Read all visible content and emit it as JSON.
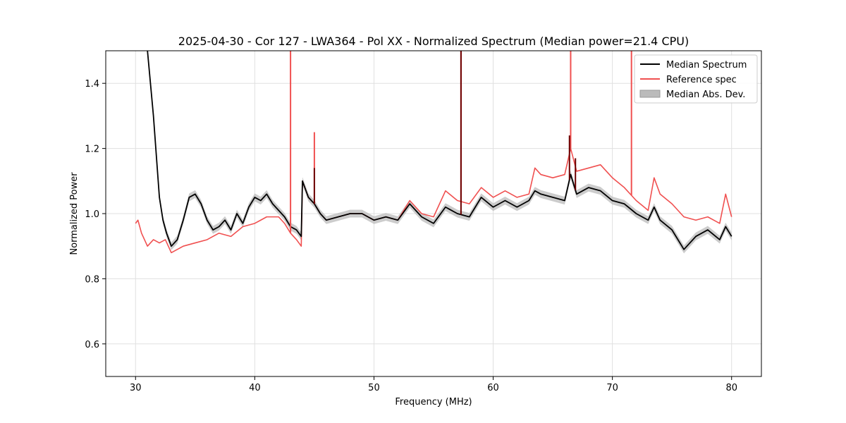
{
  "chart_data": {
    "type": "line",
    "title": "2025-04-30 - Cor 127 - LWA364 - Pol XX - Normalized Spectrum (Median power=21.4 CPU)",
    "xlabel": "Frequency (MHz)",
    "ylabel": "Normalized Power",
    "xlim": [
      27.5,
      82.5
    ],
    "ylim": [
      0.5,
      1.5
    ],
    "x_ticks": [
      30,
      40,
      50,
      60,
      70,
      80
    ],
    "y_ticks": [
      0.6,
      0.8,
      1.0,
      1.2,
      1.4
    ],
    "grid": true,
    "legend_position": "top-right",
    "legend": [
      {
        "label": "Median Spectrum",
        "kind": "line",
        "color": "#000000"
      },
      {
        "label": "Reference spec",
        "kind": "line",
        "color": "#f05050"
      },
      {
        "label": "Median Abs. Dev.",
        "kind": "band",
        "color": "#bbbbbb"
      }
    ],
    "series": [
      {
        "name": "Median Spectrum",
        "color": "#000000",
        "x": [
          31.0,
          31.5,
          32.0,
          32.3,
          32.6,
          33.0,
          33.5,
          34.0,
          34.5,
          35.0,
          35.5,
          36.0,
          36.5,
          37.0,
          37.5,
          38.0,
          38.5,
          39.0,
          39.5,
          40.0,
          40.5,
          41.0,
          41.5,
          42.0,
          42.5,
          43.0,
          43.5,
          43.9,
          44.0,
          44.5,
          45.0,
          45.5,
          46.0,
          47.0,
          48.0,
          49.0,
          50.0,
          51.0,
          52.0,
          53.0,
          54.0,
          55.0,
          56.0,
          57.0,
          58.0,
          59.0,
          60.0,
          61.0,
          62.0,
          63.0,
          63.5,
          64.0,
          65.0,
          66.0,
          66.5,
          67.0,
          68.0,
          69.0,
          70.0,
          71.0,
          72.0,
          73.0,
          73.5,
          74.0,
          75.0,
          76.0,
          77.0,
          78.0,
          79.0,
          79.5,
          80.0
        ],
        "y": [
          1.5,
          1.3,
          1.05,
          0.98,
          0.94,
          0.9,
          0.92,
          0.98,
          1.05,
          1.06,
          1.03,
          0.98,
          0.95,
          0.96,
          0.98,
          0.95,
          1.0,
          0.97,
          1.02,
          1.05,
          1.04,
          1.06,
          1.03,
          1.01,
          0.99,
          0.96,
          0.95,
          0.93,
          1.1,
          1.05,
          1.03,
          1.0,
          0.98,
          0.99,
          1.0,
          1.0,
          0.98,
          0.99,
          0.98,
          1.03,
          0.99,
          0.97,
          1.02,
          1.0,
          0.99,
          1.05,
          1.02,
          1.04,
          1.02,
          1.04,
          1.07,
          1.06,
          1.05,
          1.04,
          1.12,
          1.06,
          1.08,
          1.07,
          1.04,
          1.03,
          1.0,
          0.98,
          1.02,
          0.98,
          0.95,
          0.89,
          0.93,
          0.95,
          0.92,
          0.96,
          0.93
        ]
      },
      {
        "name": "Reference spec",
        "color": "#f05050",
        "x": [
          30.0,
          30.2,
          30.5,
          31.0,
          31.5,
          32.0,
          32.5,
          33.0,
          33.5,
          34.0,
          35.0,
          36.0,
          37.0,
          38.0,
          39.0,
          40.0,
          40.5,
          41.0,
          42.0,
          42.5,
          43.0,
          43.5,
          43.9,
          44.0,
          44.5,
          45.0,
          45.5,
          46.0,
          47.0,
          48.0,
          49.0,
          50.0,
          51.0,
          52.0,
          53.0,
          54.0,
          55.0,
          56.0,
          57.0,
          58.0,
          59.0,
          60.0,
          61.0,
          62.0,
          63.0,
          63.5,
          64.0,
          65.0,
          66.0,
          66.5,
          67.0,
          68.0,
          69.0,
          70.0,
          71.0,
          72.0,
          73.0,
          73.5,
          74.0,
          75.0,
          76.0,
          77.0,
          78.0,
          79.0,
          79.5,
          80.0
        ],
        "y": [
          0.97,
          0.98,
          0.94,
          0.9,
          0.92,
          0.91,
          0.92,
          0.88,
          0.89,
          0.9,
          0.91,
          0.92,
          0.94,
          0.93,
          0.96,
          0.97,
          0.98,
          0.99,
          0.99,
          0.97,
          0.94,
          0.92,
          0.9,
          1.1,
          1.05,
          1.03,
          1.0,
          0.98,
          0.99,
          1.0,
          1.0,
          0.98,
          0.99,
          0.98,
          1.04,
          1.0,
          0.99,
          1.07,
          1.04,
          1.03,
          1.08,
          1.05,
          1.07,
          1.05,
          1.06,
          1.14,
          1.12,
          1.11,
          1.12,
          1.2,
          1.13,
          1.14,
          1.15,
          1.11,
          1.08,
          1.04,
          1.01,
          1.11,
          1.06,
          1.03,
          0.99,
          0.98,
          0.99,
          0.97,
          1.06,
          0.99
        ]
      }
    ],
    "reference_spikes": [
      {
        "x": 43.0,
        "y": 1.5
      },
      {
        "x": 45.0,
        "y": 1.25
      },
      {
        "x": 57.3,
        "y": 1.5
      },
      {
        "x": 66.5,
        "y": 1.5
      },
      {
        "x": 71.6,
        "y": 1.5
      }
    ],
    "median_spikes": [
      {
        "x": 45.0,
        "y": 1.14
      },
      {
        "x": 57.3,
        "y": 1.5
      },
      {
        "x": 66.4,
        "y": 1.24
      },
      {
        "x": 66.9,
        "y": 1.17
      }
    ],
    "mad_band": {
      "name": "Median Abs. Dev.",
      "half_width": 0.012
    }
  }
}
